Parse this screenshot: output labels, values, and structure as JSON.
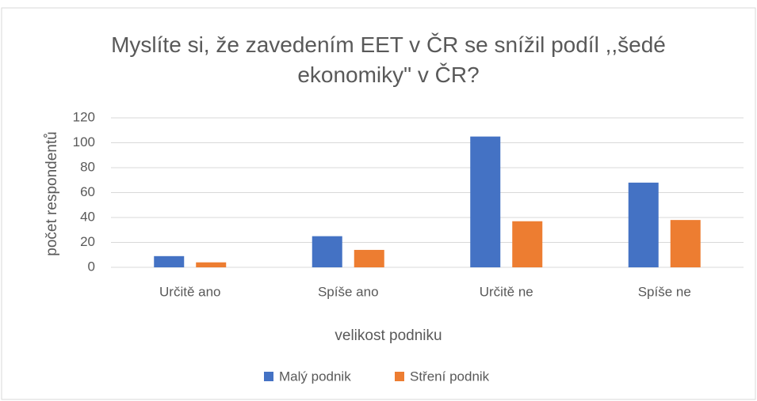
{
  "chart_data": {
    "type": "bar",
    "title": "Myslíte si, že zavedením EET v ČR se snížil podíl ,,šedé ekonomiky\" v ČR?",
    "x_label": "velikost podniku",
    "y_label": "počet respondentů",
    "categories": [
      "Určitě ano",
      "Spíše ano",
      "Určitě ne",
      "Spíše ne"
    ],
    "series": [
      {
        "name": "Malý podnik",
        "color": "#4472c4",
        "values": [
          9,
          25,
          105,
          68
        ]
      },
      {
        "name": "Stření podnik",
        "color": "#ed7d31",
        "values": [
          4,
          14,
          37,
          38
        ]
      }
    ],
    "ylim": [
      0,
      120
    ],
    "yticks": [
      0,
      20,
      40,
      60,
      80,
      100,
      120
    ],
    "grid": true,
    "legend": "bottom"
  }
}
